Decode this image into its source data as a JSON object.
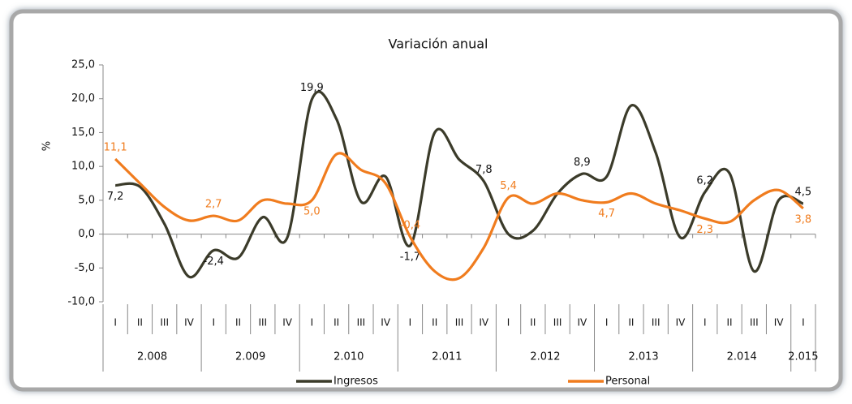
{
  "chart_data": {
    "type": "line",
    "title": "Variación anual",
    "y_label": "%",
    "categories": [
      "I",
      "II",
      "III",
      "IV",
      "I",
      "II",
      "III",
      "IV",
      "I",
      "II",
      "III",
      "IV",
      "I",
      "II",
      "III",
      "IV",
      "I",
      "II",
      "III",
      "IV",
      "I",
      "II",
      "III",
      "IV",
      "I",
      "II",
      "III",
      "IV",
      "I"
    ],
    "category_groups": [
      {
        "label": "2.008",
        "count": 4
      },
      {
        "label": "2.009",
        "count": 4
      },
      {
        "label": "2.010",
        "count": 4
      },
      {
        "label": "2.011",
        "count": 4
      },
      {
        "label": "2.012",
        "count": 4
      },
      {
        "label": "2.013",
        "count": 4
      },
      {
        "label": "2.014",
        "count": 4
      },
      {
        "label": "2.015",
        "count": 1
      }
    ],
    "series": [
      {
        "name": "Ingresos",
        "color": "#3b3b2a",
        "values": [
          7.2,
          7.0,
          1.5,
          -6.3,
          -2.4,
          -3.5,
          2.5,
          -0.5,
          19.9,
          17.0,
          4.8,
          8.5,
          -1.7,
          15.0,
          11.0,
          7.8,
          0.0,
          0.5,
          6.0,
          8.9,
          8.5,
          19.0,
          12.0,
          -0.5,
          6.2,
          9.0,
          -5.5,
          5.0,
          4.5
        ],
        "value_labels": [
          "7,2",
          null,
          null,
          null,
          "-2,4",
          null,
          null,
          null,
          "19,9",
          null,
          null,
          null,
          "-1,7",
          null,
          null,
          "7,8",
          null,
          null,
          null,
          "8,9",
          null,
          null,
          null,
          null,
          "6,2",
          null,
          null,
          null,
          "4,5"
        ]
      },
      {
        "name": "Personal",
        "color": "#f07c1e",
        "values": [
          11.1,
          7.5,
          4.0,
          2.0,
          2.7,
          2.0,
          5.0,
          4.5,
          5.0,
          11.8,
          9.5,
          7.5,
          -0.4,
          -5.5,
          -6.5,
          -2.0,
          5.4,
          4.5,
          6.0,
          5.0,
          4.7,
          6.0,
          4.5,
          3.5,
          2.3,
          1.8,
          5.0,
          6.5,
          3.8
        ],
        "value_labels": [
          "11,1",
          null,
          null,
          null,
          "2,7",
          null,
          null,
          null,
          "5,0",
          null,
          null,
          null,
          "-0,4",
          null,
          null,
          null,
          "5,4",
          null,
          null,
          null,
          "4,7",
          null,
          null,
          null,
          "2,3",
          null,
          null,
          null,
          "3,8"
        ]
      }
    ],
    "ylim": [
      -10,
      25
    ],
    "yticks": [
      {
        "value": -10,
        "label": "-10,0"
      },
      {
        "value": -5,
        "label": "-5,0"
      },
      {
        "value": 0,
        "label": "0,0"
      },
      {
        "value": 5,
        "label": "5,0"
      },
      {
        "value": 10,
        "label": "10,0"
      },
      {
        "value": 15,
        "label": "15,0"
      },
      {
        "value": 20,
        "label": "20,0"
      },
      {
        "value": 25,
        "label": "25,0"
      }
    ],
    "smooth": true,
    "legend": "bottom"
  }
}
